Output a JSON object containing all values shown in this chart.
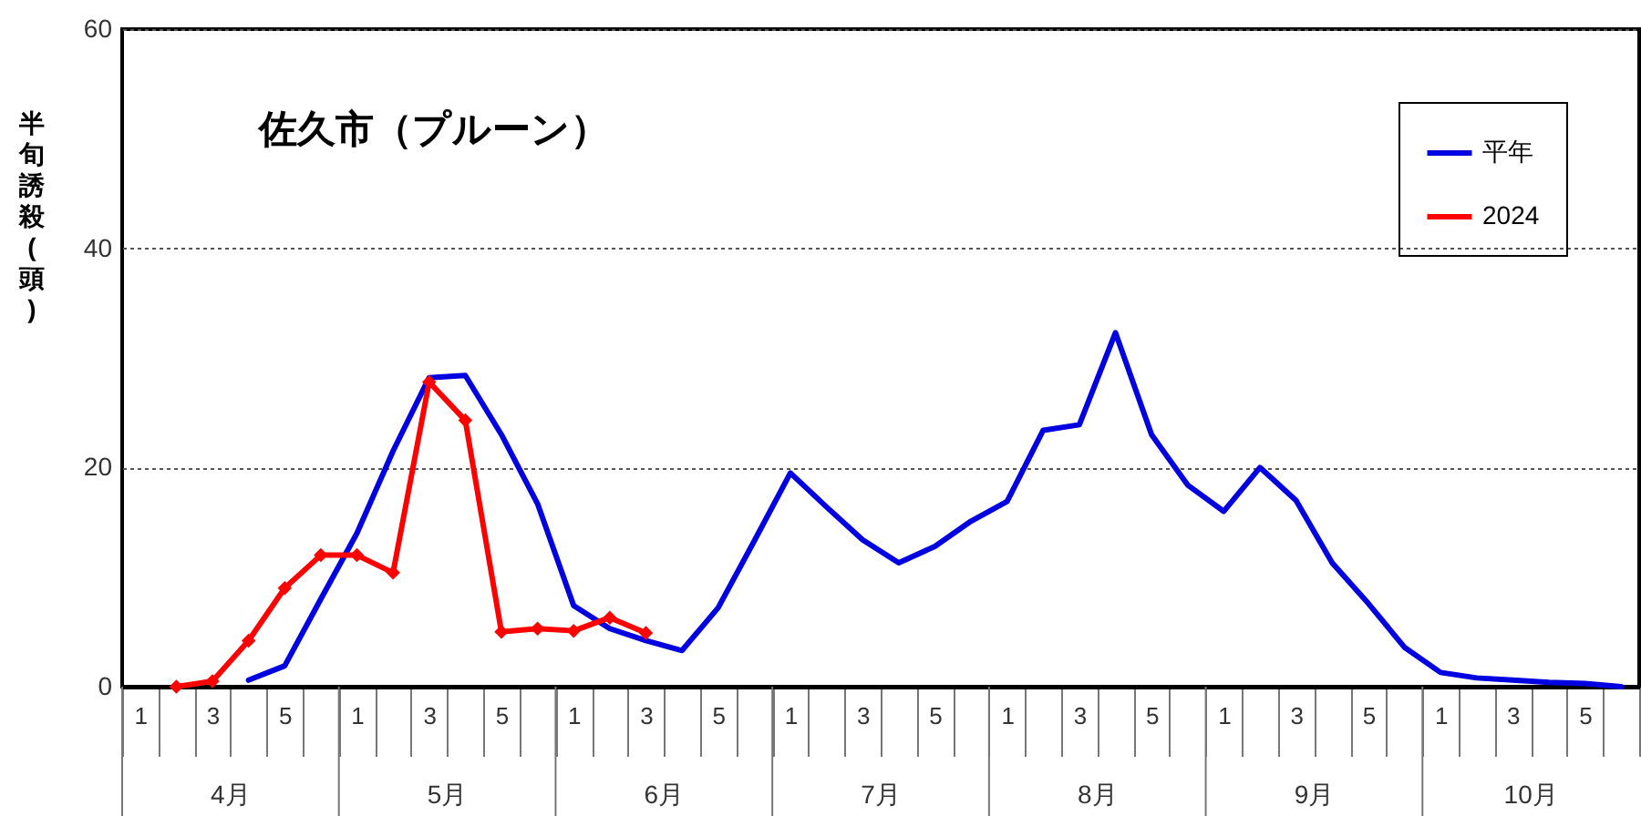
{
  "chart_data": {
    "type": "line",
    "title": "佐久市（プルーン）",
    "ylabel": "半旬誘殺(頭)",
    "categories": [
      "1",
      null,
      "3",
      null,
      "5",
      null,
      "1",
      null,
      "3",
      null,
      "5",
      null,
      "1",
      null,
      "3",
      null,
      "5",
      null,
      "1",
      null,
      "3",
      null,
      "5",
      null,
      "1",
      null,
      "3",
      null,
      "5",
      null,
      "1",
      null,
      "3",
      null,
      "5",
      null,
      "1",
      null,
      "3",
      null,
      "5",
      null
    ],
    "annotations": [
      "4月",
      "5月",
      "6月",
      "7月",
      "8月",
      "9月",
      "10月"
    ],
    "series": [
      {
        "name": "平年",
        "color": "#0000e0",
        "values": [
          null,
          null,
          null,
          0.6,
          1.9,
          8,
          14,
          21.5,
          28.2,
          28.4,
          23,
          16.7,
          7.4,
          5.3,
          4.2,
          3.3,
          7.2,
          13.3,
          19.5,
          16.4,
          13.4,
          11.3,
          12.8,
          15.1,
          16.9,
          23.4,
          23.9,
          32.3,
          23,
          18.4,
          16,
          20,
          17,
          11.3,
          7.6,
          3.6,
          1.3,
          0.8,
          0.6,
          0.4,
          0.3,
          0
        ]
      },
      {
        "name": "2024",
        "color": "#ff0000",
        "marker": "diamond",
        "values": [
          null,
          0,
          0.5,
          4.2,
          9,
          12,
          12,
          10.4,
          27.8,
          24.3,
          5,
          5.3,
          5.1,
          6.3,
          4.9,
          null,
          null,
          null,
          null,
          null,
          null,
          null,
          null,
          null,
          null,
          null,
          null,
          null,
          null,
          null,
          null,
          null,
          null,
          null,
          null,
          null,
          null,
          null,
          null,
          null,
          null,
          null
        ]
      }
    ],
    "ylim": [
      0,
      60
    ],
    "yticks": [
      0,
      20,
      40,
      60
    ],
    "grid": "y",
    "legend": "top right"
  }
}
